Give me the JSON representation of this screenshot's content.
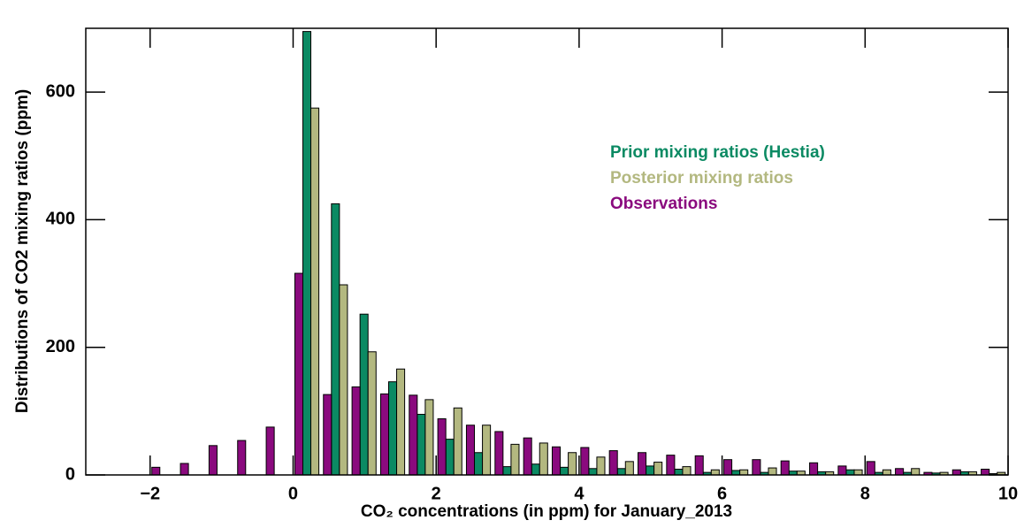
{
  "chart_data": {
    "type": "histogram",
    "xlabel": "CO₂ concentrations (in ppm) for January_2013",
    "ylabel": "Distributions of CO2 mixing ratios (ppm)",
    "bins": [
      -2.0,
      -1.6,
      -1.2,
      -0.8,
      -0.4,
      0.0,
      0.4,
      0.8,
      1.2,
      1.6,
      2.0,
      2.4,
      2.8,
      3.2,
      3.6,
      4.0,
      4.4,
      4.8,
      5.2,
      5.6,
      6.0,
      6.4,
      6.8,
      7.2,
      7.6,
      8.0,
      8.4,
      8.8,
      9.2,
      9.6,
      10.0
    ],
    "series": [
      {
        "name": "Prior mixing ratios (Hestia)",
        "color": "#0b8a63",
        "values": [
          0,
          0,
          0,
          0,
          0,
          695,
          425,
          252,
          146,
          95,
          56,
          35,
          13,
          17,
          12,
          10,
          10,
          14,
          9,
          4,
          7,
          4,
          6,
          5,
          8,
          4,
          4,
          3,
          5,
          2
        ]
      },
      {
        "name": "Posterior mixing ratios",
        "color": "#b3b880",
        "values": [
          0,
          0,
          0,
          0,
          0,
          575,
          298,
          193,
          166,
          118,
          105,
          78,
          48,
          50,
          35,
          28,
          21,
          20,
          13,
          8,
          8,
          11,
          6,
          5,
          8,
          8,
          10,
          4,
          5,
          4
        ]
      },
      {
        "name": "Observations",
        "color": "#8a0a7e",
        "values": [
          12,
          18,
          46,
          54,
          75,
          316,
          126,
          138,
          127,
          125,
          88,
          78,
          68,
          58,
          44,
          43,
          38,
          35,
          31,
          30,
          24,
          24,
          22,
          19,
          14,
          21,
          10,
          4,
          8,
          9
        ]
      }
    ],
    "xlim": [
      -2.9,
      10
    ],
    "xticks": [
      {
        "value": -2,
        "label": "−2"
      },
      0,
      2,
      4,
      6,
      8,
      10
    ],
    "ylim": [
      0,
      700
    ],
    "yticks": [
      0,
      200,
      400,
      600
    ]
  }
}
